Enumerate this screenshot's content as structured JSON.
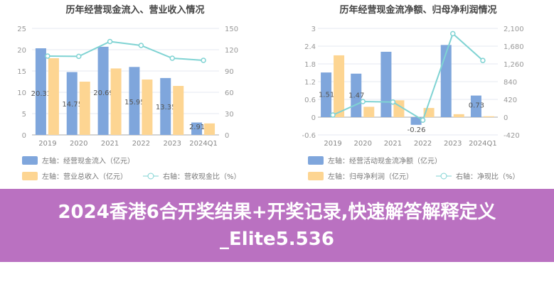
{
  "chart_data": [
    {
      "type": "bar",
      "title": "历年经营现金流入、营业收入情况",
      "categories": [
        "2019",
        "2020",
        "2021",
        "2022",
        "2023",
        "2024Q1"
      ],
      "left_axis": {
        "ylim": [
          0,
          25
        ],
        "ticks": [
          "0",
          "5",
          "10",
          "15",
          "20",
          "25"
        ]
      },
      "right_axis": {
        "ylim": [
          0,
          150
        ],
        "ticks": [
          "0",
          "30",
          "60",
          "90",
          "120",
          "150"
        ]
      },
      "series": [
        {
          "name": "左轴：经营现金流入（亿元）",
          "type": "bar",
          "axis": "left",
          "color": "#7fa6dc",
          "values": [
            20.33,
            14.75,
            20.69,
            15.95,
            13.35,
            2.91
          ],
          "labels": [
            "20.33",
            "14.75",
            "20.69",
            "15.95",
            "13.35",
            "2.91"
          ]
        },
        {
          "name": "左轴：营业总收入（亿元）",
          "type": "bar",
          "axis": "left",
          "color": "#fdd592",
          "values": [
            18.0,
            12.5,
            15.6,
            13.0,
            11.5,
            2.7
          ]
        },
        {
          "name": "右轴：营收现金比（%）",
          "type": "line",
          "axis": "right",
          "color": "#7fd3d3",
          "values": [
            111,
            110.6,
            131.5,
            126,
            108,
            105
          ]
        }
      ],
      "grid": true,
      "legend": "bottom-left"
    },
    {
      "type": "bar",
      "title": "历年经营现金流净额、归母净利润情况",
      "categories": [
        "2019",
        "2020",
        "2021",
        "2022",
        "2023",
        "2024Q1"
      ],
      "left_axis": {
        "ylim": [
          -0.6,
          3
        ],
        "ticks": [
          "-0.6",
          "0",
          "0.6",
          "1.2",
          "1.8",
          "2.4",
          "3"
        ]
      },
      "right_axis": {
        "ylim": [
          -420,
          2100
        ],
        "ticks": [
          "-420",
          "0",
          "420",
          "840",
          "1,260",
          "1,680",
          "2,100"
        ]
      },
      "series": [
        {
          "name": "左轴：经营活动现金流净额（亿元）",
          "type": "bar",
          "axis": "left",
          "color": "#7fa6dc",
          "values": [
            1.51,
            1.47,
            2.21,
            -0.26,
            2.44,
            0.73
          ],
          "labels": [
            "1.51",
            "1.47",
            "",
            "-0.26",
            "",
            "0.73"
          ]
        },
        {
          "name": "左轴：归母净利润（亿元）",
          "type": "bar",
          "axis": "left",
          "color": "#fdd592",
          "values": [
            2.09,
            0.35,
            0.57,
            0.31,
            0.1,
            0.03
          ]
        },
        {
          "name": "右轴：净现比（%）",
          "type": "line",
          "axis": "right",
          "color": "#7fd3d3",
          "values": [
            50,
            369,
            358,
            -72,
            1976,
            1341
          ]
        }
      ],
      "grid": true,
      "legend": "bottom-left"
    }
  ],
  "banner": {
    "line1": "2024香港6合开奖结果+开奖记录,快速解答解释定义",
    "line2": "_Elite5.536"
  }
}
